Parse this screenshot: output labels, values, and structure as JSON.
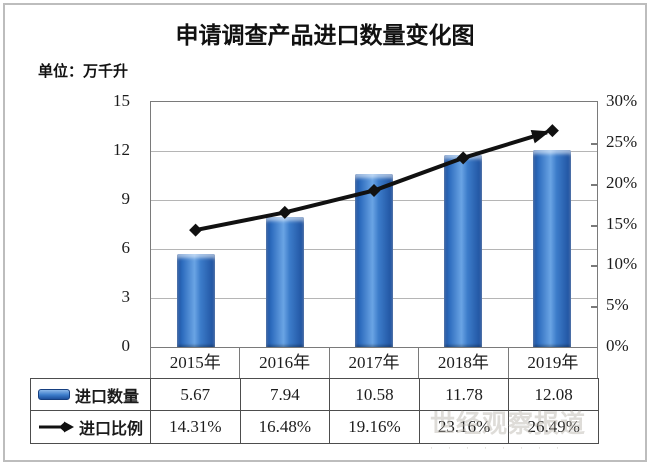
{
  "title": "申请调查产品进口数量变化图",
  "unit_label": "单位：万千升",
  "chart_data": {
    "type": "bar+line",
    "categories": [
      "2015年",
      "2016年",
      "2017年",
      "2018年",
      "2019年"
    ],
    "series": [
      {
        "name": "进口数量",
        "type": "bar",
        "axis": "left",
        "values": [
          5.67,
          7.94,
          10.58,
          11.78,
          12.08
        ],
        "color": "#2d6cbe"
      },
      {
        "name": "进口比例",
        "type": "line",
        "axis": "right",
        "values": [
          14.31,
          16.48,
          19.16,
          23.16,
          26.49
        ],
        "color": "#111111",
        "marker": "diamond",
        "arrow_end": true
      }
    ],
    "left_axis": {
      "min": 0,
      "max": 15,
      "ticks": [
        "15",
        "12",
        "9",
        "6",
        "3",
        "0"
      ]
    },
    "right_axis": {
      "min": 0,
      "max": 30,
      "ticks": [
        "30%",
        "25%",
        "20%",
        "15%",
        "10%",
        "5%",
        "0%"
      ]
    },
    "grid": true,
    "legend_position": "table-left"
  },
  "table": {
    "rows": [
      {
        "label": "进口数量",
        "icon": "bar-swatch",
        "values": [
          "5.67",
          "7.94",
          "10.58",
          "11.78",
          "12.08"
        ]
      },
      {
        "label": "进口比例",
        "icon": "line-arrow",
        "values": [
          "14.31%",
          "16.48%",
          "19.16%",
          "23.16%",
          "26.49%"
        ]
      }
    ]
  },
  "watermark": {
    "text": "世经观察报道",
    "subtext": "·　·　·　·　·　·　·　·"
  },
  "colors": {
    "bar_main": "#2d6cbe",
    "bar_dark": "#1d4f9c",
    "bar_light": "#6aa4e4",
    "line": "#111111",
    "gridline": "#b5b5b5",
    "plot_border": "#7a7a7a",
    "table_border": "#4d4d4d",
    "frame_border": "#bdbdbd",
    "text": "#1c1c1c"
  }
}
